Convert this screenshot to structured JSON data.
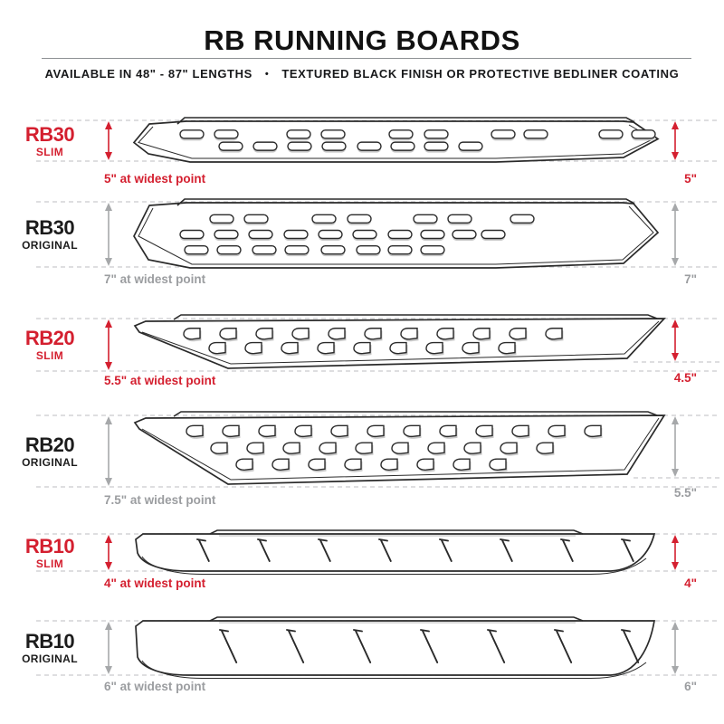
{
  "header": {
    "title": "RB RUNNING BOARDS",
    "subtitle_left": "AVAILABLE IN 48\" - 87\" LENGTHS",
    "subtitle_separator": "•",
    "subtitle_right": "TEXTURED BLACK FINISH OR PROTECTIVE BEDLINER COATING"
  },
  "colors": {
    "accent_red": "#d41f2f",
    "neutral_gray_text": "#9b9da0",
    "arrow_gray": "#a6a8aa",
    "ink": "#1c1c1c",
    "outline": "#2a2a2a",
    "dash_gray": "#c9cbcd"
  },
  "boards": [
    {
      "model": "RB30",
      "variant": "SLIM",
      "accent": "red",
      "width_note": "5\" at widest point",
      "side_dimension": "5\"",
      "hole_style": "oval-slot",
      "hole_rows": [
        10,
        8
      ]
    },
    {
      "model": "RB30",
      "variant": "ORIGINAL",
      "accent": "gray",
      "width_note": "7\" at widest point",
      "side_dimension": "7\"",
      "hole_style": "oval-slot",
      "hole_rows": [
        7,
        10,
        8
      ]
    },
    {
      "model": "RB20",
      "variant": "SLIM",
      "accent": "red",
      "width_note": "5.5\" at widest point",
      "side_dimension": "4.5\"",
      "hole_style": "d-hole",
      "hole_rows": [
        11,
        9
      ]
    },
    {
      "model": "RB20",
      "variant": "ORIGINAL",
      "accent": "gray",
      "width_note": "7.5\" at widest point",
      "side_dimension": "5.5\"",
      "hole_style": "d-hole",
      "hole_rows": [
        12,
        10,
        8
      ]
    },
    {
      "model": "RB10",
      "variant": "SLIM",
      "accent": "red",
      "width_note": "4\" at widest point",
      "side_dimension": "4\"",
      "hole_style": "hash-mark",
      "hole_rows": [
        8
      ]
    },
    {
      "model": "RB10",
      "variant": "ORIGINAL",
      "accent": "gray",
      "width_note": "6\" at widest point",
      "side_dimension": "6\"",
      "hole_style": "hash-mark",
      "hole_rows": [
        7
      ]
    }
  ]
}
